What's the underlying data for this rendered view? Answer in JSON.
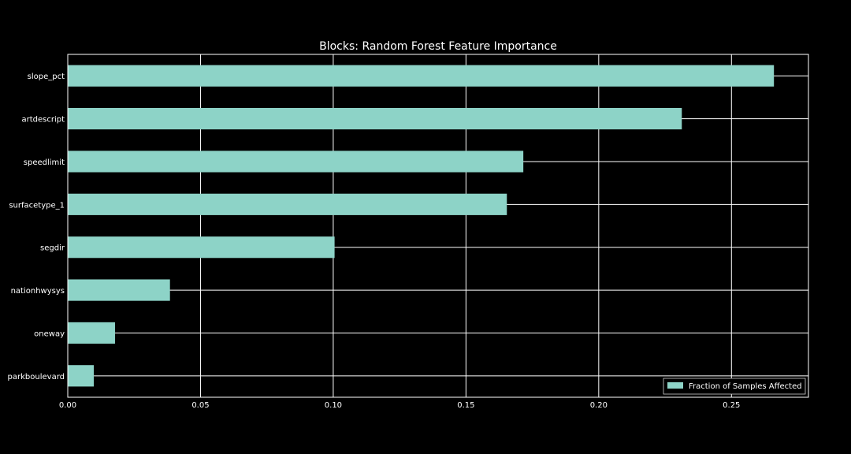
{
  "chart_data": {
    "type": "bar",
    "orientation": "horizontal",
    "title": "Blocks: Random Forest Feature Importance",
    "xlabel": "",
    "ylabel": "",
    "categories": [
      "slope_pct",
      "artdescript",
      "speedlimit",
      "surfacetype_1",
      "segdir",
      "nationhwysys",
      "oneway",
      "parkboulevard"
    ],
    "series": [
      {
        "name": "Fraction of Samples Affected",
        "values": [
          0.266,
          0.2313,
          0.1716,
          0.1654,
          0.1005,
          0.0385,
          0.0178,
          0.0098
        ]
      }
    ],
    "xlim": [
      0,
      0.279
    ],
    "xticks": [
      0.0,
      0.05,
      0.1,
      0.15,
      0.2,
      0.25
    ],
    "xtick_labels": [
      "0.00",
      "0.05",
      "0.10",
      "0.15",
      "0.20",
      "0.25"
    ],
    "grid": true,
    "legend_position": "bottom-right",
    "colors": {
      "background": "#000000",
      "bar": "#8dd3c7",
      "grid": "#ffffff",
      "text": "#ffffff"
    }
  }
}
